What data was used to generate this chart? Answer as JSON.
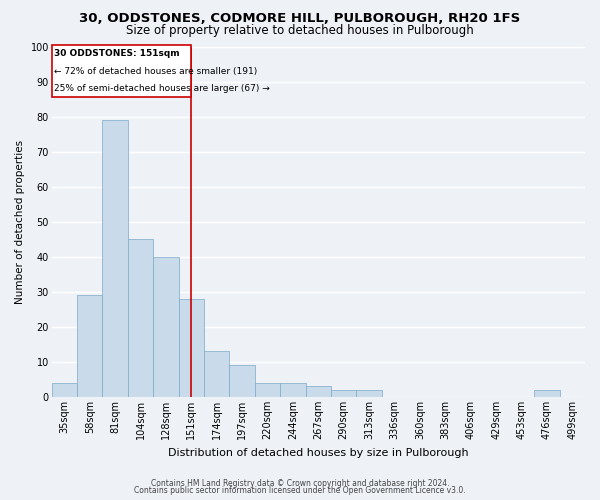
{
  "title1": "30, ODDSTONES, CODMORE HILL, PULBOROUGH, RH20 1FS",
  "title2": "Size of property relative to detached houses in Pulborough",
  "xlabel": "Distribution of detached houses by size in Pulborough",
  "ylabel": "Number of detached properties",
  "categories": [
    "35sqm",
    "58sqm",
    "81sqm",
    "104sqm",
    "128sqm",
    "151sqm",
    "174sqm",
    "197sqm",
    "220sqm",
    "244sqm",
    "267sqm",
    "290sqm",
    "313sqm",
    "336sqm",
    "360sqm",
    "383sqm",
    "406sqm",
    "429sqm",
    "453sqm",
    "476sqm",
    "499sqm"
  ],
  "values": [
    4,
    29,
    79,
    45,
    40,
    28,
    13,
    9,
    4,
    4,
    3,
    2,
    2,
    0,
    0,
    0,
    0,
    0,
    0,
    2,
    0
  ],
  "bar_color": "#c9daea",
  "bar_edge_color": "#7aaac8",
  "vline_index": 5,
  "vline_color": "#cc0000",
  "annotation_title": "30 ODDSTONES: 151sqm",
  "annotation_line1": "← 72% of detached houses are smaller (191)",
  "annotation_line2": "25% of semi-detached houses are larger (67) →",
  "annotation_box_color": "#cc0000",
  "ylim": [
    0,
    100
  ],
  "yticks": [
    0,
    10,
    20,
    30,
    40,
    50,
    60,
    70,
    80,
    90,
    100
  ],
  "footer1": "Contains HM Land Registry data © Crown copyright and database right 2024.",
  "footer2": "Contains public sector information licensed under the Open Government Licence v3.0.",
  "background_color": "#eef2f7",
  "grid_color": "#ffffff",
  "title_fontsize": 9.5,
  "subtitle_fontsize": 8.5,
  "xlabel_fontsize": 8,
  "ylabel_fontsize": 7.5,
  "tick_fontsize": 7,
  "footer_fontsize": 5.5
}
